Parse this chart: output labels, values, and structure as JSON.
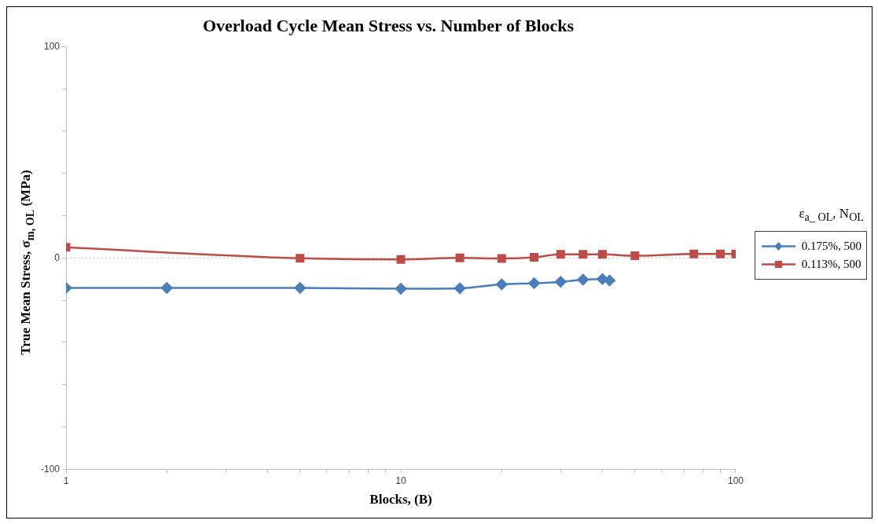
{
  "chart_data": {
    "type": "line",
    "title": "Overload Cycle Mean Stress vs. Number of Blocks",
    "xlabel": "Blocks, (B)",
    "ylabel": "True Mean Stress,  σ$_{m, OL}$ (MPa)",
    "legend_title": "ε$_{a_ OL}$, N$_{OL}$",
    "log": "x",
    "legend": "right",
    "xlim": [
      1,
      100
    ],
    "ylim": [
      -100,
      100
    ],
    "xticks": [
      1,
      {
        "value": 2,
        "label": null
      },
      {
        "value": 3,
        "label": null
      },
      {
        "value": 4,
        "label": null
      },
      {
        "value": 5,
        "label": null
      },
      {
        "value": 6,
        "label": null
      },
      {
        "value": 7,
        "label": null
      },
      {
        "value": 8,
        "label": null
      },
      {
        "value": 9,
        "label": null
      },
      10,
      {
        "value": 20,
        "label": null
      },
      {
        "value": 30,
        "label": null
      },
      {
        "value": 40,
        "label": null
      },
      {
        "value": 50,
        "label": null
      },
      {
        "value": 60,
        "label": null
      },
      {
        "value": 70,
        "label": null
      },
      {
        "value": 80,
        "label": null
      },
      {
        "value": 90,
        "label": null
      },
      100
    ],
    "yticks": [
      -100,
      {
        "value": -80,
        "label": null
      },
      {
        "value": -60,
        "label": null
      },
      {
        "value": -40,
        "label": null
      },
      {
        "value": -20,
        "label": null
      },
      0,
      {
        "value": 20,
        "label": null
      },
      {
        "value": 40,
        "label": null
      },
      {
        "value": 60,
        "label": null
      },
      {
        "value": 80,
        "label": null
      },
      100
    ],
    "ref_lines": [
      {
        "axis": "y",
        "value": 0,
        "color": "#bfbfbf",
        "line_style": "dotted"
      }
    ],
    "series": [
      {
        "name": "0.175%, 500",
        "color": "#4a7ebb",
        "marker": "diamond",
        "x": [
          1,
          2,
          5,
          10,
          15,
          20,
          25,
          30,
          35,
          40,
          42
        ],
        "values": [
          -14.2,
          -14.2,
          -14.2,
          -14.6,
          -14.4,
          -12.5,
          -12,
          -11.3,
          -10.3,
          -10,
          -10.7
        ]
      },
      {
        "name": "0.113%, 500",
        "color": "#be4b48",
        "marker": "square",
        "x": [
          1,
          5,
          10,
          15,
          20,
          25,
          30,
          35,
          40,
          50,
          75,
          90,
          100
        ],
        "values": [
          5,
          -0.2,
          -0.7,
          0,
          -0.3,
          0.3,
          1.7,
          1.7,
          1.7,
          1,
          1.9,
          1.9,
          1.9
        ]
      }
    ]
  }
}
